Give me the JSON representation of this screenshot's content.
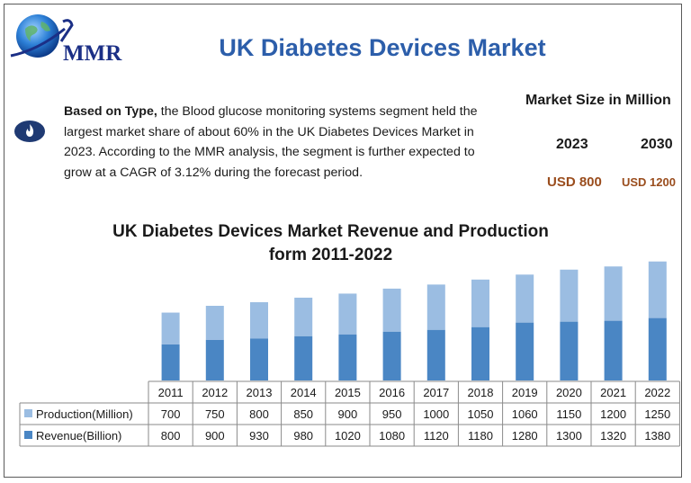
{
  "brand": {
    "logo_text": "MMR"
  },
  "header": {
    "title": "UK Diabetes Devices Market"
  },
  "summary": {
    "lead": "Based on Type,",
    "text": " the Blood glucose monitoring systems segment held the largest market share of about 60% in the UK Diabetes Devices Market in 2023. According to the MMR analysis, the segment is further expected to grow at a CAGR of 3.12% during the forecast period."
  },
  "market_size": {
    "heading": "Market Size in Million",
    "year_1": "2023",
    "year_2": "2030",
    "value_1": "USD 800",
    "value_2": "USD 1200"
  },
  "colors": {
    "title": "#2c5eaa",
    "production": "#9bbde2",
    "revenue": "#4a86c4",
    "usd": "#9a4d1d"
  },
  "icons": {
    "logo": "globe-icon",
    "info": "flame-icon"
  },
  "chart_data": {
    "type": "bar",
    "stacked": true,
    "title": "UK Diabetes Devices Market Revenue and Production form 2011-2022",
    "title_line_1": "UK Diabetes Devices Market Revenue and Production",
    "title_line_2": "form 2011-2022",
    "categories": [
      "2011",
      "2012",
      "2013",
      "2014",
      "2015",
      "2016",
      "2017",
      "2018",
      "2019",
      "2020",
      "2021",
      "2022"
    ],
    "series": [
      {
        "name": "Production(Million)",
        "values": [
          700,
          750,
          800,
          850,
          900,
          950,
          1000,
          1050,
          1060,
          1150,
          1200,
          1250
        ]
      },
      {
        "name": "Revenue(Billion)",
        "values": [
          800,
          900,
          930,
          980,
          1020,
          1080,
          1120,
          1180,
          1280,
          1300,
          1320,
          1380
        ]
      }
    ],
    "legend": "data-table",
    "grid": false
  }
}
